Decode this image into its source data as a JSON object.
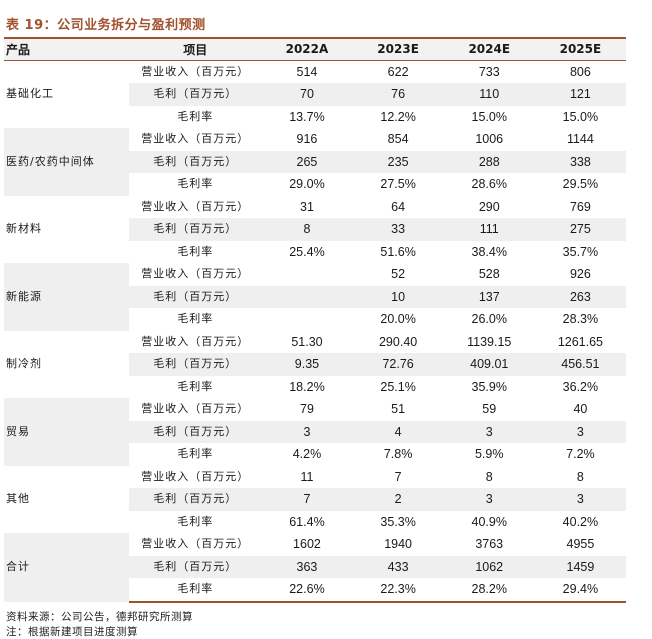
{
  "title": "表 19：公司业务拆分与盈利预测",
  "headers": [
    "产品",
    "项目",
    "2022A",
    "2023E",
    "2024E",
    "2025E"
  ],
  "groups": [
    {
      "name": "基础化工",
      "rows": [
        {
          "item": "营业收入（百万元）",
          "values": [
            "514",
            "622",
            "733",
            "806"
          ]
        },
        {
          "item": "毛利（百万元）",
          "values": [
            "70",
            "76",
            "110",
            "121"
          ]
        },
        {
          "item": "毛利率",
          "values": [
            "13.7%",
            "12.2%",
            "15.0%",
            "15.0%"
          ]
        }
      ]
    },
    {
      "name": "医药/农药中间体",
      "rows": [
        {
          "item": "营业收入（百万元）",
          "values": [
            "916",
            "854",
            "1006",
            "1144"
          ]
        },
        {
          "item": "毛利（百万元）",
          "values": [
            "265",
            "235",
            "288",
            "338"
          ]
        },
        {
          "item": "毛利率",
          "values": [
            "29.0%",
            "27.5%",
            "28.6%",
            "29.5%"
          ]
        }
      ]
    },
    {
      "name": "新材料",
      "rows": [
        {
          "item": "营业收入（百万元）",
          "values": [
            "31",
            "64",
            "290",
            "769"
          ]
        },
        {
          "item": "毛利（百万元）",
          "values": [
            "8",
            "33",
            "111",
            "275"
          ]
        },
        {
          "item": "毛利率",
          "values": [
            "25.4%",
            "51.6%",
            "38.4%",
            "35.7%"
          ]
        }
      ]
    },
    {
      "name": "新能源",
      "rows": [
        {
          "item": "营业收入（百万元）",
          "values": [
            "",
            "52",
            "528",
            "926"
          ]
        },
        {
          "item": "毛利（百万元）",
          "values": [
            "",
            "10",
            "137",
            "263"
          ]
        },
        {
          "item": "毛利率",
          "values": [
            "",
            "20.0%",
            "26.0%",
            "28.3%"
          ]
        }
      ]
    },
    {
      "name": "制冷剂",
      "rows": [
        {
          "item": "营业收入（百万元）",
          "values": [
            "51.30",
            "290.40",
            "1139.15",
            "1261.65"
          ]
        },
        {
          "item": "毛利（百万元）",
          "values": [
            "9.35",
            "72.76",
            "409.01",
            "456.51"
          ]
        },
        {
          "item": "毛利率",
          "values": [
            "18.2%",
            "25.1%",
            "35.9%",
            "36.2%"
          ]
        }
      ]
    },
    {
      "name": "贸易",
      "rows": [
        {
          "item": "营业收入（百万元）",
          "values": [
            "79",
            "51",
            "59",
            "40"
          ]
        },
        {
          "item": "毛利（百万元）",
          "values": [
            "3",
            "4",
            "3",
            "3"
          ]
        },
        {
          "item": "毛利率",
          "values": [
            "4.2%",
            "7.8%",
            "5.9%",
            "7.2%"
          ]
        }
      ]
    },
    {
      "name": "其他",
      "rows": [
        {
          "item": "营业收入（百万元）",
          "values": [
            "11",
            "7",
            "8",
            "8"
          ]
        },
        {
          "item": "毛利（百万元）",
          "values": [
            "7",
            "2",
            "3",
            "3"
          ]
        },
        {
          "item": "毛利率",
          "values": [
            "61.4%",
            "35.3%",
            "40.9%",
            "40.2%"
          ]
        }
      ]
    },
    {
      "name": "合计",
      "rows": [
        {
          "item": "营业收入（百万元）",
          "values": [
            "1602",
            "1940",
            "3763",
            "4955"
          ]
        },
        {
          "item": "毛利（百万元）",
          "values": [
            "363",
            "433",
            "1062",
            "1459"
          ]
        },
        {
          "item": "毛利率",
          "values": [
            "22.6%",
            "22.3%",
            "28.2%",
            "29.4%"
          ]
        }
      ]
    }
  ],
  "source": "资料来源：公司公告，德邦研究所测算",
  "note": "注：根据新建项目进度测算",
  "colors": {
    "accent": "#a0522d",
    "shade": "#efefef",
    "header_bg": "#f2f2f2"
  }
}
